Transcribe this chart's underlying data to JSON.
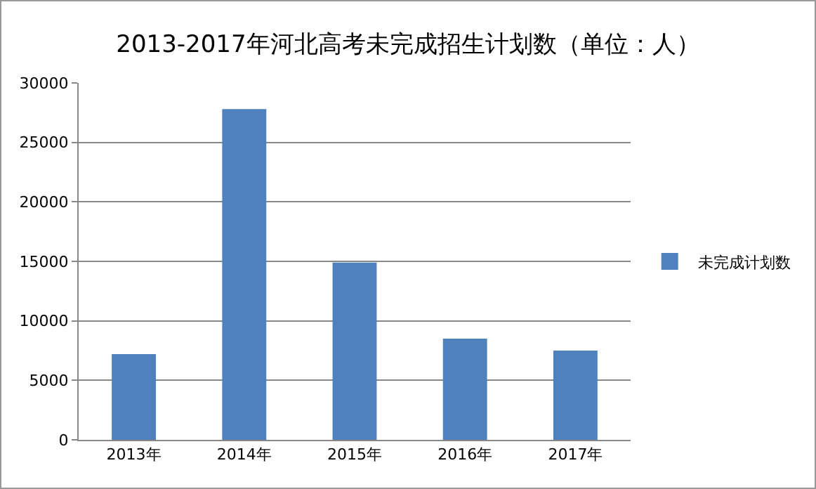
{
  "chart_data": {
    "type": "bar",
    "title": "2013-2017年河北高考未完成招生计划数（单位：人）",
    "categories": [
      "2013年",
      "2014年",
      "2015年",
      "2016年",
      "2017年"
    ],
    "series": [
      {
        "name": "未完成计划数",
        "color": "#4f81bd",
        "values": [
          7200,
          27800,
          14900,
          8500,
          7500
        ]
      }
    ],
    "ylim": [
      0,
      30000
    ],
    "yticks": [
      0,
      5000,
      10000,
      15000,
      20000,
      25000,
      30000
    ],
    "grid": "y",
    "legend": "right"
  }
}
